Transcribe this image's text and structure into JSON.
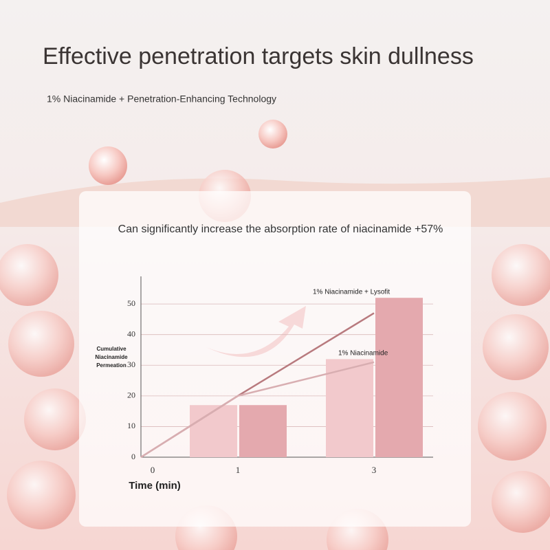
{
  "header": {
    "title": "Effective penetration targets skin dullness",
    "subtitle": "1% Niacinamide + Penetration-Enhancing Technology"
  },
  "chart_data": {
    "type": "bar-line",
    "title": "Can significantly increase the absorption rate of niacinamide +57%",
    "x_label": "Time (min)",
    "y_label": "Cumulative Niacinamide Permeation",
    "categories": [
      "0",
      "1",
      "3"
    ],
    "ylim": [
      0,
      59
    ],
    "yticks": [
      0,
      10,
      20,
      30,
      40,
      50
    ],
    "grid": true,
    "bars": [
      {
        "color": "#f2c9cc",
        "values": [
          null,
          17,
          32
        ]
      },
      {
        "color": "#e4a9ae",
        "values": [
          null,
          17,
          52
        ]
      }
    ],
    "series": [
      {
        "name": "1% Niacinamide + Lysofit",
        "color": "#b87a7e",
        "values": [
          0,
          20,
          47
        ]
      },
      {
        "name": "1% Niacinamide",
        "color": "#d8aeb1",
        "values": [
          0,
          20,
          31
        ]
      }
    ]
  }
}
